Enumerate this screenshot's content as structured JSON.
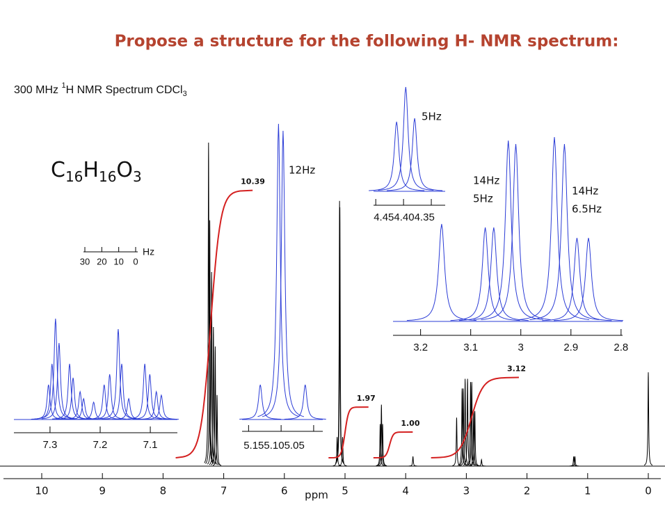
{
  "chart_data": {
    "type": "nmr",
    "title": "Propose a structure for the following H- NMR spectrum:",
    "spectrum_label": [
      "300 MHz ",
      "1",
      "H NMR Spectrum CDCl",
      "3"
    ],
    "formula": [
      "C",
      "16",
      "H",
      "16",
      "O",
      "3"
    ],
    "x_label": "ppm",
    "xlim": [
      10,
      0
    ],
    "xticks": [
      10,
      9,
      8,
      7,
      6,
      5,
      4,
      3,
      2,
      1,
      0
    ],
    "color": "#000000",
    "peaks": {
      "ppm": [
        7.25,
        7.23,
        7.2,
        7.17,
        7.14,
        7.11,
        5.13,
        5.09,
        5.085,
        5.04,
        4.42,
        4.4,
        4.38,
        3.88,
        3.16,
        3.07,
        3.05,
        3.02,
        2.98,
        2.93,
        2.91,
        2.88,
        2.86,
        2.75,
        1.23,
        1.21,
        0
      ],
      "intensity": [
        100,
        76,
        60,
        43,
        37,
        22,
        9,
        82,
        80,
        9,
        13,
        19,
        13,
        3,
        15,
        24,
        24,
        27,
        27,
        26,
        26,
        17,
        17,
        2,
        3,
        3,
        29
      ]
    },
    "integrals": {
      "color": "#d42020",
      "from": [
        7.7,
        5.18,
        4.44,
        3.49
      ],
      "to": [
        6.73,
        4.82,
        4.09,
        2.34
      ],
      "values": [
        10.39,
        1.97,
        1,
        3.12
      ],
      "value_labels": [
        "10.39",
        "1.97",
        "1.00",
        "3.12"
      ]
    },
    "insets": [
      {
        "color": "#2a3bd6",
        "xlim": [
          7.372,
          7.046
        ],
        "xticks": [
          7.3,
          7.2,
          7.1
        ],
        "ppm": [
          7.303,
          7.296,
          7.289,
          7.282,
          7.261,
          7.254,
          7.24,
          7.233,
          7.213,
          7.192,
          7.181,
          7.164,
          7.157,
          7.143,
          7.111,
          7.101,
          7.088,
          7.078
        ],
        "intensity": [
          50,
          80,
          145,
          110,
          80,
          60,
          40,
          30,
          25,
          50,
          65,
          130,
          80,
          30,
          80,
          65,
          40,
          35
        ]
      },
      {
        "color": "#2a3bd6",
        "xlim": [
          5.16,
          5.036
        ],
        "xticks": [
          5.15,
          5.1,
          5.05
        ],
        "axis_label": "5.155.105.05",
        "ppm": [
          5.132,
          5.104,
          5.097,
          5.063
        ],
        "intensity": [
          50,
          425,
          415,
          50
        ],
        "annotations": [
          "12Hz"
        ]
      },
      {
        "color": "#2a3bd6",
        "xlim": [
          4.454,
          4.325
        ],
        "xticks": [
          4.45,
          4.4,
          4.35
        ],
        "axis_label": "4.454.404.35",
        "ppm": [
          4.4125,
          4.396,
          4.38
        ],
        "intensity": [
          100,
          150,
          105
        ],
        "annotations": [
          "5Hz"
        ]
      },
      {
        "color": "#2a3bd6",
        "xlim": [
          3.255,
          2.797
        ],
        "xticks": [
          3.2,
          3.1,
          3.0,
          2.9,
          2.8
        ],
        "ppm": [
          3.158,
          3.071,
          3.054,
          3.025,
          3.01,
          2.933,
          2.913,
          2.888,
          2.865
        ],
        "intensity": [
          140,
          135,
          135,
          260,
          255,
          265,
          255,
          120,
          120
        ],
        "annotations": [
          "14Hz",
          "5Hz",
          "14Hz",
          "6.5Hz"
        ]
      }
    ],
    "hz_scale": {
      "ticks": [
        30,
        20,
        10,
        0
      ],
      "unit": "Hz"
    }
  }
}
